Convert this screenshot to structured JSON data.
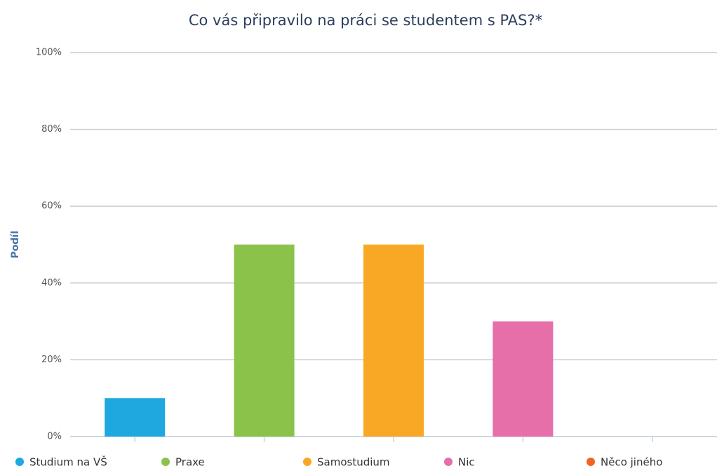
{
  "chart_data": {
    "type": "bar",
    "title": "Co vás připravilo na práci se studentem s PAS?*",
    "y_axis_label": "Podíl",
    "categories": [
      "Studium na VŠ",
      "Praxe",
      "Samostudium",
      "Nic",
      "Něco jiného"
    ],
    "values": [
      10,
      50,
      50,
      30,
      0
    ],
    "colors": [
      "#1fa8e0",
      "#8bc34a",
      "#f9a825",
      "#e66ea9",
      "#f06424"
    ],
    "ylim": [
      0,
      100
    ],
    "yticks": [
      {
        "value": 0,
        "label": "0%"
      },
      {
        "value": 20,
        "label": "20%"
      },
      {
        "value": 40,
        "label": "40%"
      },
      {
        "value": 60,
        "label": "60%"
      },
      {
        "value": 80,
        "label": "80%"
      },
      {
        "value": 100,
        "label": "100%"
      }
    ],
    "grid": true,
    "legend": "bottom"
  }
}
